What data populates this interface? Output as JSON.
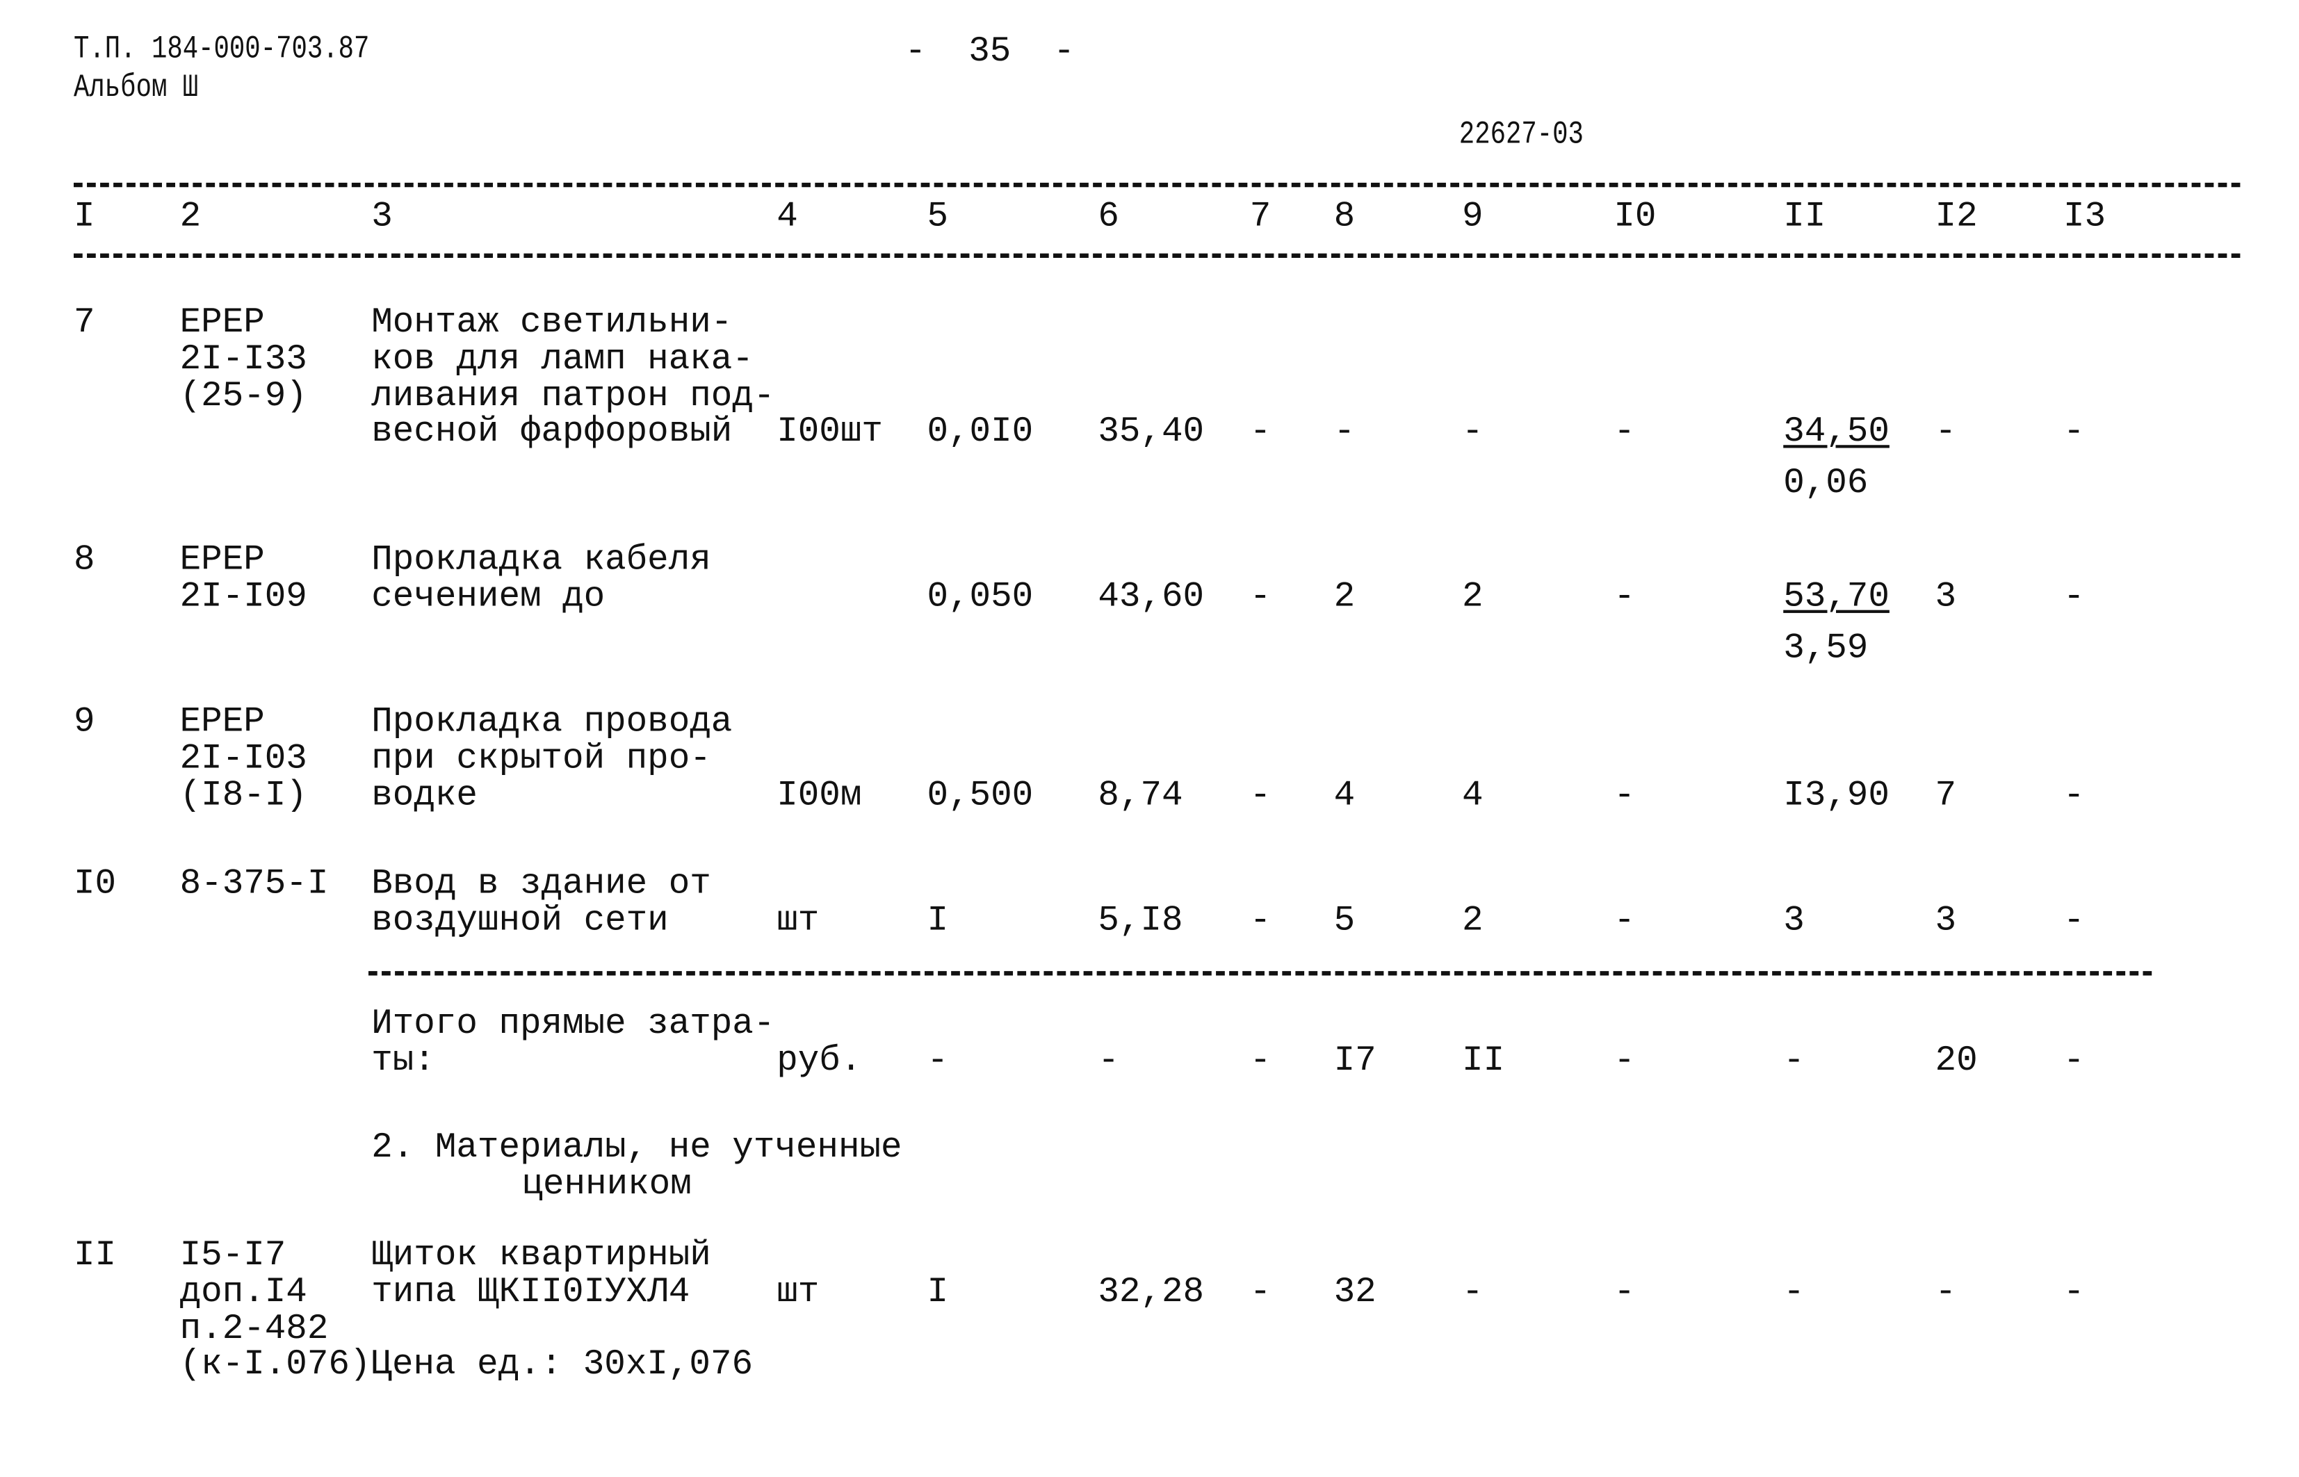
{
  "header": {
    "doc_code": "Т.П. 184-000-703.87",
    "album": "Альбом Ш",
    "page_number": "-  35  -",
    "sheet_code": "22627-03"
  },
  "columns": [
    "I",
    "2",
    "3",
    "4",
    "5",
    "6",
    "7",
    "8",
    "9",
    "I0",
    "II",
    "I2",
    "I3"
  ],
  "rows": [
    {
      "num": "7",
      "code": [
        "ЕРЕР",
        "2I-I33",
        "(25-9)"
      ],
      "description": [
        "Монтаж светильни-",
        "ков для ламп нака-",
        "ливания патрон под-",
        "весной фарфоровый"
      ],
      "unit": "I00шт",
      "values": [
        "0,0I0",
        "35,40",
        "-",
        "-",
        "-",
        "-",
        "34,50",
        "-",
        "-"
      ],
      "c11_sub": "0,06",
      "c11_underlined": true
    },
    {
      "num": "8",
      "code": [
        "ЕРЕР",
        "2I-I09"
      ],
      "description": [
        "Прокладка кабеля",
        "сечением до"
      ],
      "unit": "",
      "values": [
        "0,050",
        "43,60",
        "-",
        "2",
        "2",
        "-",
        "53,70",
        "3",
        "-"
      ],
      "c11_sub": "3,59",
      "c11_underlined": true
    },
    {
      "num": "9",
      "code": [
        "ЕРЕР",
        "2I-I03",
        "(I8-I)"
      ],
      "description": [
        "Прокладка провода",
        "при скрытой про-",
        "водке"
      ],
      "unit": "I00м",
      "values": [
        "0,500",
        "8,74",
        "-",
        "4",
        "4",
        "-",
        "I3,90",
        "7",
        "-"
      ]
    },
    {
      "num": "I0",
      "code": [
        "8-375-I"
      ],
      "description": [
        "Ввод в здание от",
        "воздушной сети"
      ],
      "unit": "шт",
      "values": [
        "I",
        "5,I8",
        "-",
        "5",
        "2",
        "-",
        "3",
        "3",
        "-"
      ]
    },
    {
      "num": "",
      "code": [],
      "description": [
        "Итого прямые затра-",
        "ты:"
      ],
      "unit": "руб.",
      "values": [
        "-",
        "-",
        "-",
        "I7",
        "II",
        "-",
        "-",
        "20",
        "-"
      ]
    },
    {
      "num": "II",
      "code": [
        "I5-I7",
        "доп.I4",
        "п.2-482",
        "(к-I.076)Цена ед.: 30хI,076"
      ],
      "description": [
        "Щиток квартирный",
        "типа ЩКII0IУХЛ4"
      ],
      "unit": "шт",
      "values": [
        "I",
        "32,28",
        "-",
        "32",
        "-",
        "-",
        "-",
        "-",
        "-"
      ]
    }
  ],
  "section": {
    "title": "2. Материалы, не утченные",
    "title_cont": "ценником"
  }
}
